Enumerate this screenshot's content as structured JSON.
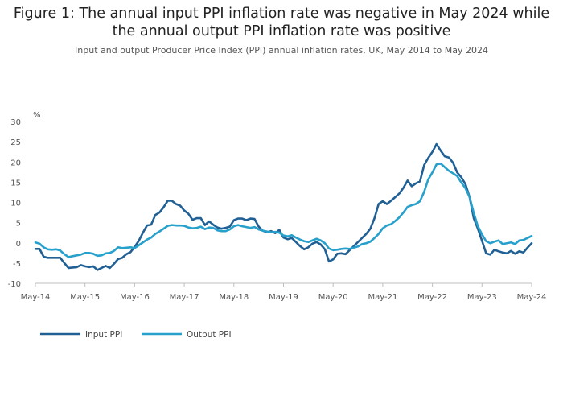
{
  "page": {
    "title": "Figure 1: The annual input PPI inflation rate was negative in May 2024 while the annual output PPI inflation rate was positive",
    "subtitle": "Input and output Producer Price Index (PPI) annual inflation rates, UK, May 2014 to May 2024"
  },
  "chart_data": {
    "type": "line",
    "title": "Figure 1: The annual input PPI inflation rate was negative in May 2024 while the annual output PPI inflation rate was positive",
    "subtitle": "Input and output Producer Price Index (PPI) annual inflation rates, UK, May 2014 to May 2024",
    "ylabel": "%",
    "xlabel": "",
    "ylim": [
      -10,
      30
    ],
    "yticks": [
      -10,
      -5,
      0,
      5,
      10,
      15,
      20,
      25,
      30
    ],
    "xlim_months": [
      0,
      120
    ],
    "xticks": [
      {
        "label": "May-14",
        "month": 0
      },
      {
        "label": "May-15",
        "month": 12
      },
      {
        "label": "May-16",
        "month": 24
      },
      {
        "label": "May-17",
        "month": 36
      },
      {
        "label": "May-18",
        "month": 48
      },
      {
        "label": "May-19",
        "month": 60
      },
      {
        "label": "May-20",
        "month": 72
      },
      {
        "label": "May-21",
        "month": 84
      },
      {
        "label": "May-22",
        "month": 96
      },
      {
        "label": "May-23",
        "month": 108
      },
      {
        "label": "May-24",
        "month": 120
      }
    ],
    "grid": false,
    "legend_position": "bottom-left",
    "series": [
      {
        "name": "Input PPI",
        "color": "#206095",
        "values": [
          -1.5,
          -1.5,
          -3.4,
          -3.7,
          -3.7,
          -3.7,
          -3.7,
          -5.0,
          -6.2,
          -6.1,
          -6.0,
          -5.5,
          -5.8,
          -6.0,
          -5.8,
          -6.7,
          -6.2,
          -5.7,
          -6.2,
          -5.2,
          -4.0,
          -3.7,
          -2.8,
          -2.3,
          -1.0,
          0.5,
          2.5,
          4.3,
          4.5,
          6.9,
          7.5,
          8.8,
          10.4,
          10.4,
          9.6,
          9.2,
          8.0,
          7.2,
          5.7,
          6.1,
          6.1,
          4.4,
          5.3,
          4.5,
          3.8,
          3.5,
          3.7,
          4.0,
          5.6,
          6.0,
          6.0,
          5.6,
          6.0,
          5.9,
          4.0,
          3.0,
          2.6,
          2.9,
          2.4,
          3.2,
          1.3,
          0.9,
          1.2,
          0.2,
          -0.8,
          -1.6,
          -1.1,
          -0.2,
          0.2,
          -0.4,
          -1.6,
          -4.6,
          -4.1,
          -2.7,
          -2.6,
          -2.8,
          -1.8,
          -0.8,
          0.2,
          1.2,
          2.2,
          3.5,
          6.1,
          9.6,
          10.3,
          9.6,
          10.4,
          11.3,
          12.2,
          13.6,
          15.4,
          14.0,
          14.7,
          15.2,
          19.2,
          21.0,
          22.5,
          24.4,
          22.8,
          21.4,
          21.1,
          19.8,
          17.4,
          16.2,
          14.5,
          11.3,
          6.1,
          3.5,
          0.5,
          -2.6,
          -2.9,
          -1.7,
          -2.1,
          -2.4,
          -2.6,
          -2.0,
          -2.7,
          -2.1,
          -2.4,
          -1.2,
          -0.1
        ]
      },
      {
        "name": "Output PPI",
        "color": "#27a0cc",
        "values": [
          0.1,
          -0.2,
          -1.1,
          -1.6,
          -1.7,
          -1.6,
          -1.9,
          -2.8,
          -3.5,
          -3.3,
          -3.1,
          -2.9,
          -2.5,
          -2.5,
          -2.7,
          -3.2,
          -3.1,
          -2.6,
          -2.5,
          -2.0,
          -1.1,
          -1.3,
          -1.2,
          -1.1,
          -1.3,
          -0.6,
          0.1,
          0.8,
          1.3,
          2.2,
          2.8,
          3.5,
          4.2,
          4.4,
          4.3,
          4.3,
          4.2,
          3.8,
          3.6,
          3.7,
          4.0,
          3.4,
          3.8,
          3.7,
          3.1,
          2.9,
          2.9,
          3.3,
          4.1,
          4.4,
          4.1,
          3.9,
          3.7,
          3.9,
          3.3,
          3.0,
          2.8,
          2.6,
          2.7,
          2.5,
          1.8,
          1.6,
          1.9,
          1.3,
          0.8,
          0.4,
          0.2,
          0.6,
          1.0,
          0.6,
          -0.1,
          -1.4,
          -1.8,
          -1.7,
          -1.5,
          -1.4,
          -1.5,
          -1.2,
          -0.9,
          -0.3,
          -0.1,
          0.3,
          1.2,
          2.2,
          3.6,
          4.3,
          4.6,
          5.4,
          6.3,
          7.5,
          8.9,
          9.3,
          9.6,
          10.3,
          12.6,
          15.7,
          17.4,
          19.4,
          19.6,
          18.7,
          17.8,
          17.2,
          16.5,
          14.9,
          13.5,
          11.3,
          7.4,
          4.1,
          2.1,
          0.4,
          -0.1,
          0.3,
          0.6,
          -0.3,
          -0.1,
          0.1,
          -0.3,
          0.6,
          0.7,
          1.2,
          1.7
        ]
      }
    ]
  }
}
